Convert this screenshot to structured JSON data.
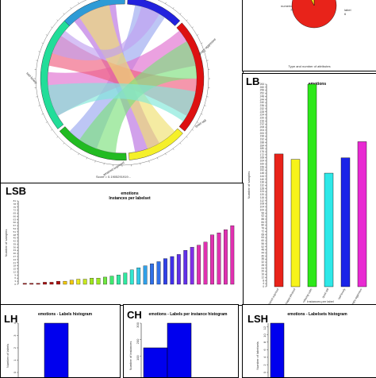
{
  "panels": {
    "lb_label": "LB",
    "lsb_label": "LSB",
    "lh_label": "LH",
    "ch_label": "CH",
    "lsh_label": "LSH"
  },
  "chart_data": [
    {
      "id": "chord",
      "type": "chord",
      "caption": "Score = 0.1905291919...",
      "arc_labels": [
        "sad-lonely",
        "amazed-suprised",
        "relaxing-calm",
        "quiet-still",
        "angry-aggresive"
      ]
    },
    {
      "id": "pie",
      "type": "pie",
      "caption": "Type and number of attributes",
      "slices": [
        {
          "label": "numeric",
          "value": 72,
          "color": "#e8231a"
        },
        {
          "label": "label",
          "value": 6,
          "color": "#f4d318"
        }
      ]
    },
    {
      "id": "lb",
      "type": "bar",
      "title": "emotions",
      "xlabel": "Instances per label",
      "ylabel": "Number of samples",
      "categories": [
        "amazed-suprised",
        "happy-pleased",
        "relaxing-calm",
        "quiet-still",
        "sad-lonely",
        "angry-aggresive"
      ],
      "values": [
        173,
        166,
        264,
        148,
        168,
        189
      ],
      "colors": [
        "#e8231a",
        "#f7f31a",
        "#2de81a",
        "#2ee8e8",
        "#1a23e8",
        "#e82ad2"
      ],
      "ylim": [
        0,
        264
      ],
      "yticks": [
        0,
        4,
        8,
        12,
        16,
        20,
        24,
        28,
        32,
        36,
        40,
        44,
        48,
        52,
        56,
        60,
        64,
        68,
        72,
        76,
        80,
        84,
        88,
        92,
        96,
        100,
        104,
        108,
        112,
        116,
        120,
        124,
        128,
        132,
        136,
        140,
        144,
        148,
        152,
        156,
        160,
        164,
        168,
        172,
        176,
        180,
        184,
        188,
        192,
        196,
        200,
        204,
        208,
        212,
        216,
        220,
        224,
        228,
        232,
        236,
        240,
        244,
        248,
        252,
        256,
        260,
        264
      ]
    },
    {
      "id": "lsb",
      "type": "bar",
      "title": "emotions",
      "subtitle": "Instances per labelset",
      "ylabel": "Number of samples",
      "values": [
        1,
        1,
        1,
        2,
        2,
        3,
        3,
        4,
        5,
        5,
        6,
        6,
        7,
        8,
        9,
        11,
        14,
        16,
        18,
        20,
        22,
        25,
        27,
        29,
        33,
        36,
        38,
        41,
        48,
        50,
        53,
        57
      ],
      "ylim": [
        0,
        81
      ],
      "yticks": [
        0,
        3,
        6,
        9,
        12,
        15,
        18,
        21,
        24,
        27,
        30,
        33,
        36,
        39,
        42,
        45,
        48,
        51,
        54,
        57,
        60,
        63,
        66,
        69,
        72,
        75,
        78,
        81
      ]
    },
    {
      "id": "lh",
      "type": "bar",
      "title": "emotions - Labels histogram",
      "ylabel": "Number of labels",
      "values": [
        4
      ],
      "ylim": [
        0,
        4
      ],
      "yticks": [
        0,
        1,
        2,
        3,
        4
      ],
      "color": "#0000ee"
    },
    {
      "id": "ch",
      "type": "bar",
      "title": "emotions - Labels per instance histogram",
      "ylabel": "Number of instances",
      "values": [
        150,
        300
      ],
      "ylim": [
        0,
        300
      ],
      "yticks": [
        "100",
        "200",
        "300"
      ],
      "color": "#0000ee"
    },
    {
      "id": "lsh",
      "type": "bar",
      "title": "emotions - Labelsets histogram",
      "ylabel": "Number of labelsets",
      "values": [
        13
      ],
      "ylim": [
        0,
        13
      ],
      "yticks": [
        0,
        2,
        4,
        6,
        8,
        10,
        12
      ],
      "color": "#0000ee"
    }
  ]
}
